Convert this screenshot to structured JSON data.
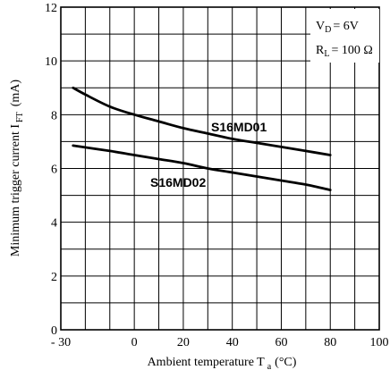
{
  "chart_data": {
    "type": "line",
    "title": "",
    "xlabel": "Ambient temperature T",
    "xlabel_sub": "a",
    "xlabel_unit": "(°C)",
    "ylabel": "Minimum trigger current I",
    "ylabel_sub": "FT",
    "ylabel_unit": "(mA)",
    "xlim": [
      -30,
      100
    ],
    "ylim": [
      0,
      12
    ],
    "x_ticks": [
      -30,
      0,
      20,
      40,
      60,
      80,
      100
    ],
    "x_tick_labels": [
      "- 30",
      "0",
      "20",
      "40",
      "60",
      "80",
      "100"
    ],
    "y_ticks": [
      0,
      2,
      4,
      6,
      8,
      10,
      12
    ],
    "y_tick_labels": [
      "0",
      "2",
      "4",
      "6",
      "8",
      "10",
      "12"
    ],
    "grid": true,
    "series": [
      {
        "name": "S16MD01",
        "x": [
          -25,
          -20,
          -10,
          0,
          10,
          20,
          30,
          40,
          50,
          60,
          70,
          80
        ],
        "y": [
          9.0,
          8.75,
          8.3,
          8.0,
          7.75,
          7.5,
          7.3,
          7.1,
          6.95,
          6.8,
          6.65,
          6.5
        ]
      },
      {
        "name": "S16MD02",
        "x": [
          -25,
          -10,
          0,
          10,
          20,
          30,
          40,
          50,
          60,
          70,
          80
        ],
        "y": [
          6.85,
          6.65,
          6.5,
          6.35,
          6.2,
          6.0,
          5.85,
          5.7,
          5.55,
          5.4,
          5.2
        ]
      }
    ],
    "conditions": {
      "vd_main": "V",
      "vd_sub": "D",
      "vd_val": "= 6V",
      "rl_main": "R",
      "rl_sub": "L",
      "rl_val": "= 100 Ω"
    }
  }
}
